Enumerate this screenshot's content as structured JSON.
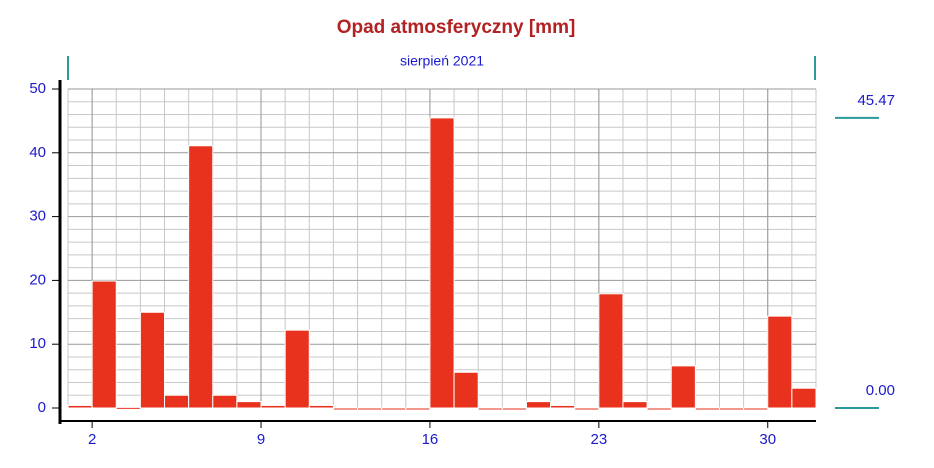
{
  "chart_data": {
    "type": "bar",
    "title": "Opad atmosferyczny [mm]",
    "subtitle": "sierpień 2021",
    "x": [
      1,
      2,
      3,
      4,
      5,
      6,
      7,
      8,
      9,
      10,
      11,
      12,
      13,
      14,
      15,
      16,
      17,
      18,
      19,
      20,
      21,
      22,
      23,
      24,
      25,
      26,
      27,
      28,
      29,
      30,
      31
    ],
    "values": [
      0.4,
      19.9,
      0.1,
      15.0,
      2.0,
      41.1,
      2.0,
      1.0,
      0.4,
      12.2,
      0.4,
      0,
      0,
      0,
      0,
      45.47,
      5.6,
      0,
      0,
      1.0,
      0.4,
      0,
      17.9,
      1.0,
      0,
      6.6,
      0,
      0,
      0,
      14.4,
      3.1
    ],
    "color": "#e8321e",
    "xlim": [
      1,
      32
    ],
    "xticks": [
      2,
      9,
      16,
      23,
      30
    ],
    "ylim": [
      0,
      50
    ],
    "yticks": [
      0,
      10,
      20,
      30,
      40,
      50
    ],
    "grid": true,
    "markers": [
      {
        "value": 45.47,
        "label": "45.47"
      },
      {
        "value": 0,
        "label": "0.00"
      }
    ]
  }
}
